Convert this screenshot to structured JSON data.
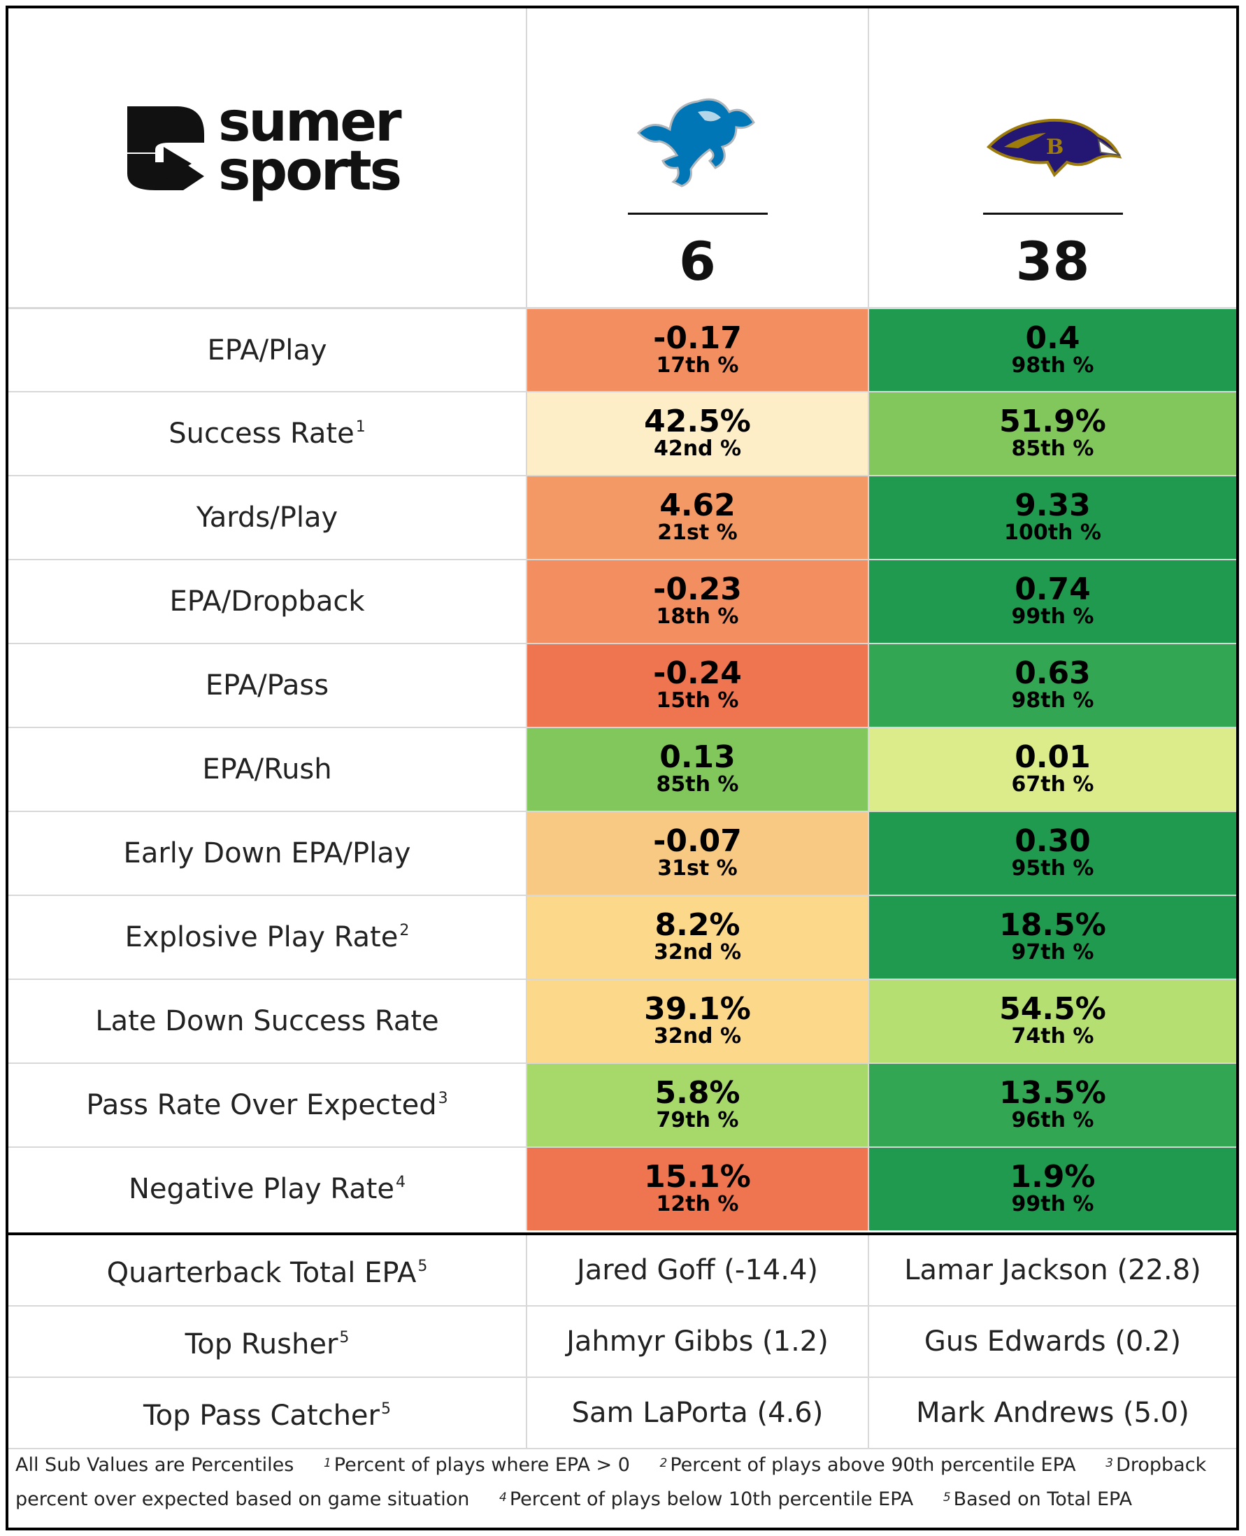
{
  "brand": {
    "line1": "sumer",
    "line2": "sports"
  },
  "teams": {
    "a": {
      "logo": "lions-logo",
      "score": "6"
    },
    "b": {
      "logo": "ravens-logo",
      "score": "38"
    }
  },
  "colors": {
    "orange_strong": "#ef7450",
    "orange": "#f28e5f",
    "orange_mid": "#f39965",
    "orange_light": "#f8c982",
    "yellow": "#fcd88a",
    "cream": "#fdeec8",
    "green_dark": "#1f9a4f",
    "green_med": "#33a653",
    "green": "#82c75b",
    "green_light": "#a6d86a",
    "lime": "#dcec8b",
    "lime2": "#b6df72"
  },
  "metrics": [
    {
      "label": "EPA/Play",
      "sup": "",
      "a": {
        "value": "-0.17",
        "pct": "17th %"
      },
      "b": {
        "value": "0.4",
        "pct": "98th %"
      }
    },
    {
      "label": "Success Rate",
      "sup": "1",
      "a": {
        "value": "42.5%",
        "pct": "42nd %"
      },
      "b": {
        "value": "51.9%",
        "pct": "85th %"
      }
    },
    {
      "label": "Yards/Play",
      "sup": "",
      "a": {
        "value": "4.62",
        "pct": "21st %"
      },
      "b": {
        "value": "9.33",
        "pct": "100th %"
      }
    },
    {
      "label": "EPA/Dropback",
      "sup": "",
      "a": {
        "value": "-0.23",
        "pct": "18th %"
      },
      "b": {
        "value": "0.74",
        "pct": "99th %"
      }
    },
    {
      "label": "EPA/Pass",
      "sup": "",
      "a": {
        "value": "-0.24",
        "pct": "15th %"
      },
      "b": {
        "value": "0.63",
        "pct": "98th %"
      }
    },
    {
      "label": "EPA/Rush",
      "sup": "",
      "a": {
        "value": "0.13",
        "pct": "85th %"
      },
      "b": {
        "value": "0.01",
        "pct": "67th %"
      }
    },
    {
      "label": "Early Down EPA/Play",
      "sup": "",
      "a": {
        "value": "-0.07",
        "pct": "31st %"
      },
      "b": {
        "value": "0.30",
        "pct": "95th %"
      }
    },
    {
      "label": "Explosive Play Rate",
      "sup": "2",
      "a": {
        "value": "8.2%",
        "pct": "32nd %"
      },
      "b": {
        "value": "18.5%",
        "pct": "97th %"
      }
    },
    {
      "label": "Late Down Success Rate",
      "sup": "",
      "a": {
        "value": "39.1%",
        "pct": "32nd %"
      },
      "b": {
        "value": "54.5%",
        "pct": "74th %"
      }
    },
    {
      "label": "Pass Rate Over Expected",
      "sup": "3",
      "a": {
        "value": "5.8%",
        "pct": "79th %"
      },
      "b": {
        "value": "13.5%",
        "pct": "96th %"
      }
    },
    {
      "label": "Negative Play Rate",
      "sup": "4",
      "a": {
        "value": "15.1%",
        "pct": "12th %"
      },
      "b": {
        "value": "1.9%",
        "pct": "99th %"
      }
    }
  ],
  "players": [
    {
      "label": "Quarterback Total EPA",
      "sup": "5",
      "a": "Jared Goff (-14.4)",
      "b": "Lamar Jackson (22.8)"
    },
    {
      "label": "Top Rusher",
      "sup": "5",
      "a": "Jahmyr Gibbs (1.2)",
      "b": "Gus Edwards (0.2)"
    },
    {
      "label": "Top Pass Catcher",
      "sup": "5",
      "a": "Sam LaPorta (4.6)",
      "b": "Mark Andrews (5.0)"
    }
  ],
  "footnotes": {
    "intro": "All Sub Values are Percentiles",
    "items": [
      {
        "num": "1",
        "text": "Percent of plays where EPA > 0"
      },
      {
        "num": "2",
        "text": "Percent of plays above 90th percentile EPA"
      },
      {
        "num": "3",
        "text": "Dropback percent over expected based on game situation"
      },
      {
        "num": "4",
        "text": "Percent of plays below 10th percentile EPA"
      },
      {
        "num": "5",
        "text": "Based on Total EPA"
      }
    ]
  }
}
